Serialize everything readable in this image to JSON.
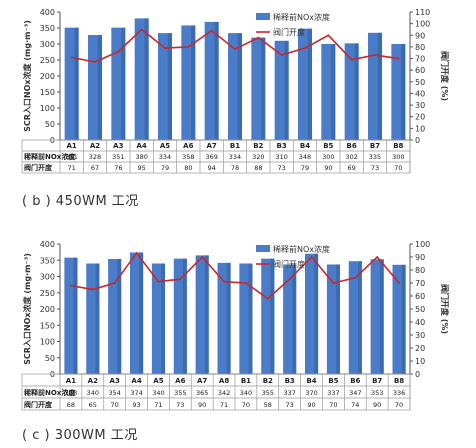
{
  "chart_data": [
    {
      "type": "bar",
      "caption": "( b ) 450WM 工况",
      "categories": [
        "A1",
        "A2",
        "A3",
        "A4",
        "A5",
        "A6",
        "A7",
        "B1",
        "B2",
        "B3",
        "B4",
        "B5",
        "B6",
        "B7",
        "B8"
      ],
      "series": [
        {
          "name": "稀释前NOx浓度",
          "type": "bar",
          "axis": "left",
          "values": [
            351,
            328,
            351,
            380,
            334,
            358,
            369,
            334,
            320,
            310,
            348,
            300,
            302,
            335,
            300
          ]
        },
        {
          "name": "阀门开度",
          "type": "line",
          "axis": "right",
          "values": [
            71,
            67,
            76,
            95,
            79,
            80,
            94,
            78,
            88,
            73,
            79,
            90,
            69,
            73,
            70
          ]
        }
      ],
      "table_rows": [
        {
          "label": "稀释前NOx浓度",
          "values": [
            "351",
            "328",
            "351",
            "380",
            "334",
            "358",
            "369",
            "334",
            "320",
            "310",
            "348",
            "300",
            "302",
            "335",
            "300"
          ]
        },
        {
          "label": "阀门开度",
          "values": [
            "71",
            "67",
            "76",
            "95",
            "79",
            "80",
            "94",
            "78",
            "88",
            "73",
            "79",
            "90",
            "69",
            "73",
            "70"
          ]
        }
      ],
      "ylabel_left": "SCR入口NOx浓度 (mg·m⁻³)",
      "ylabel_right": "阀门开度 (%)",
      "ylim_left": [
        0,
        400
      ],
      "yticks_left": [
        0,
        50,
        100,
        150,
        200,
        250,
        300,
        350,
        400
      ],
      "ylim_right": [
        0,
        110
      ],
      "yticks_right": [
        0,
        10,
        20,
        30,
        40,
        50,
        60,
        70,
        80,
        90,
        100,
        110
      ],
      "legend_position": "top-right",
      "grid": false
    },
    {
      "type": "bar",
      "caption": "( c ) 300WM 工况",
      "categories": [
        "A1",
        "A2",
        "A3",
        "A4",
        "A5",
        "A6",
        "A7",
        "A8",
        "B1",
        "B2",
        "B3",
        "B4",
        "B5",
        "B6",
        "B7",
        "B8"
      ],
      "series": [
        {
          "name": "稀释前NOx浓度",
          "type": "bar",
          "axis": "left",
          "values": [
            358,
            340,
            354,
            374,
            340,
            355,
            365,
            342,
            340,
            355,
            337,
            370,
            337,
            347,
            353,
            336
          ]
        },
        {
          "name": "阀门开度",
          "type": "line",
          "axis": "right",
          "values": [
            68,
            65,
            70,
            93,
            71,
            73,
            90,
            71,
            70,
            58,
            73,
            90,
            70,
            74,
            90,
            70
          ]
        }
      ],
      "table_rows": [
        {
          "label": "稀释前NOx浓度",
          "values": [
            "358",
            "340",
            "354",
            "374",
            "340",
            "355",
            "365",
            "342",
            "340",
            "355",
            "337",
            "370",
            "337",
            "347",
            "353",
            "336"
          ]
        },
        {
          "label": "阀门开度",
          "values": [
            "68",
            "65",
            "70",
            "93",
            "71",
            "73",
            "90",
            "71",
            "70",
            "58",
            "73",
            "90",
            "70",
            "74",
            "90",
            "70"
          ]
        }
      ],
      "ylabel_left": "SCR入口NOx浓度 (mg·m⁻³)",
      "ylabel_right": "阀门开度 (%)",
      "ylim_left": [
        0,
        400
      ],
      "yticks_left": [
        0,
        50,
        100,
        150,
        200,
        250,
        300,
        350,
        400
      ],
      "ylim_right": [
        0,
        100
      ],
      "yticks_right": [
        0,
        10,
        20,
        30,
        40,
        50,
        60,
        70,
        80,
        90,
        100
      ],
      "legend_position": "top-right",
      "grid": false
    }
  ],
  "colors": {
    "bar": "#4a7cc7",
    "bar_shade": "#2f5ea3",
    "line": "#c8282d",
    "axis": "#555555",
    "table_border": "#999999"
  }
}
